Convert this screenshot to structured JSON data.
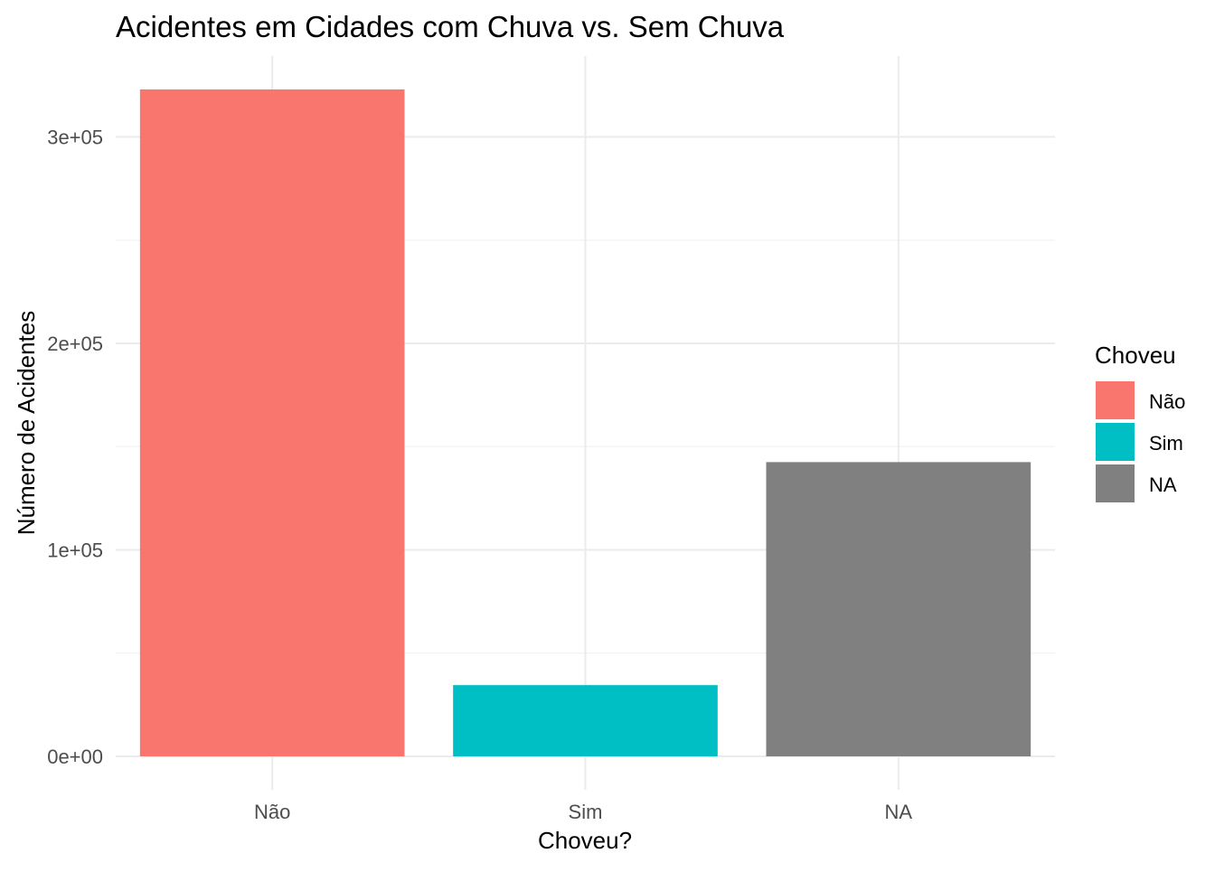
{
  "chart_data": {
    "type": "bar",
    "title": "Acidentes em Cidades com Chuva vs. Sem Chuva",
    "xlabel": "Choveu?",
    "ylabel": "Número de Acidentes",
    "categories": [
      "Não",
      "Sim",
      "NA"
    ],
    "values": [
      323000,
      34500,
      142500
    ],
    "colors": [
      "#F8766D",
      "#00BFC4",
      "#808080"
    ],
    "ylim": [
      0,
      335000
    ],
    "y_ticks": [
      0,
      100000,
      200000,
      300000
    ],
    "y_tick_labels": [
      "0e+00",
      "1e+05",
      "2e+05",
      "3e+05"
    ],
    "y_minor_ticks": [
      50000,
      150000,
      250000
    ],
    "grid": true,
    "legend": {
      "title": "Choveu",
      "position": "right",
      "items": [
        {
          "label": "Não",
          "color": "#F8766D"
        },
        {
          "label": "Sim",
          "color": "#00BFC4"
        },
        {
          "label": "NA",
          "color": "#808080"
        }
      ]
    }
  }
}
